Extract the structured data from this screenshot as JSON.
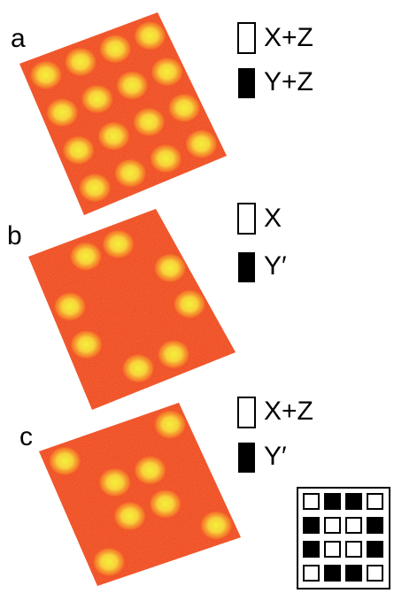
{
  "panels": [
    {
      "label": "a",
      "legend": [
        "X+Z",
        "Y+Z"
      ]
    },
    {
      "label": "b",
      "legend": [
        "X",
        "Y′"
      ]
    },
    {
      "label": "c",
      "legend": [
        "X+Z",
        "Y′"
      ]
    }
  ]
}
